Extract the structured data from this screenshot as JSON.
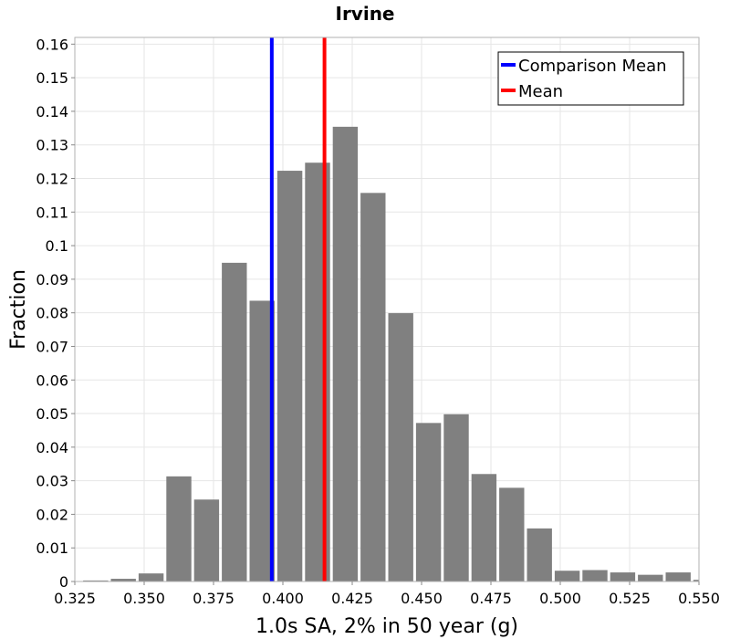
{
  "chart_data": {
    "type": "bar",
    "title": "Irvine",
    "xlabel": "1.0s SA, 2% in 50 year (g)",
    "ylabel": "Fraction",
    "xlim": [
      0.325,
      0.55
    ],
    "ylim": [
      0,
      0.162
    ],
    "grid": true,
    "bin_width": 0.01,
    "bins": [
      {
        "x": 0.3325,
        "value": 0.0003
      },
      {
        "x": 0.3425,
        "value": 0.0008
      },
      {
        "x": 0.3525,
        "value": 0.0024
      },
      {
        "x": 0.3625,
        "value": 0.0313
      },
      {
        "x": 0.3725,
        "value": 0.0244
      },
      {
        "x": 0.3825,
        "value": 0.0949
      },
      {
        "x": 0.3925,
        "value": 0.0836
      },
      {
        "x": 0.4025,
        "value": 0.1223
      },
      {
        "x": 0.4125,
        "value": 0.1247
      },
      {
        "x": 0.4225,
        "value": 0.1354
      },
      {
        "x": 0.4325,
        "value": 0.1157
      },
      {
        "x": 0.4425,
        "value": 0.0799
      },
      {
        "x": 0.4525,
        "value": 0.0472
      },
      {
        "x": 0.4625,
        "value": 0.0498
      },
      {
        "x": 0.4725,
        "value": 0.032
      },
      {
        "x": 0.4825,
        "value": 0.0279
      },
      {
        "x": 0.4925,
        "value": 0.0158
      },
      {
        "x": 0.5025,
        "value": 0.0032
      },
      {
        "x": 0.5125,
        "value": 0.0034
      },
      {
        "x": 0.5225,
        "value": 0.0027
      },
      {
        "x": 0.5325,
        "value": 0.002
      },
      {
        "x": 0.5425,
        "value": 0.0027
      },
      {
        "x": 0.5525,
        "value": 0.0005
      }
    ],
    "x_ticks": [
      "0.325",
      "0.350",
      "0.375",
      "0.400",
      "0.425",
      "0.450",
      "0.475",
      "0.500",
      "0.525",
      "0.550"
    ],
    "y_ticks": [
      "0",
      "0.01",
      "0.02",
      "0.03",
      "0.04",
      "0.05",
      "0.06",
      "0.07",
      "0.08",
      "0.09",
      "0.1",
      "0.11",
      "0.12",
      "0.13",
      "0.14",
      "0.15",
      "0.16"
    ],
    "reference_lines": [
      {
        "name": "Comparison Mean",
        "x": 0.396,
        "color": "#0000ff"
      },
      {
        "name": "Mean",
        "x": 0.415,
        "color": "#ff0000"
      }
    ],
    "legend": {
      "position": "top-right",
      "entries": [
        "Comparison Mean",
        "Mean"
      ]
    },
    "bar_color": "#808080"
  }
}
